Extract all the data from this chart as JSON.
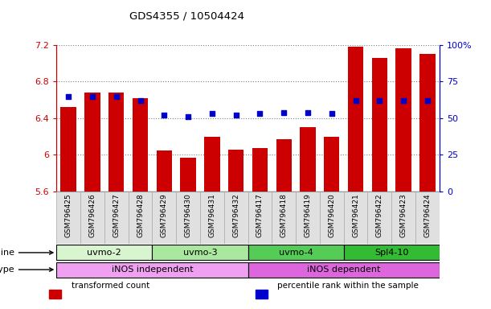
{
  "title": "GDS4355 / 10504424",
  "samples": [
    "GSM796425",
    "GSM796426",
    "GSM796427",
    "GSM796428",
    "GSM796429",
    "GSM796430",
    "GSM796431",
    "GSM796432",
    "GSM796417",
    "GSM796418",
    "GSM796419",
    "GSM796420",
    "GSM796421",
    "GSM796422",
    "GSM796423",
    "GSM796424"
  ],
  "bar_values": [
    6.52,
    6.68,
    6.68,
    6.62,
    6.05,
    5.97,
    6.2,
    6.06,
    6.07,
    6.17,
    6.3,
    6.2,
    7.18,
    7.06,
    7.16,
    7.1
  ],
  "dot_values": [
    65,
    65,
    65,
    62,
    52,
    51,
    53,
    52,
    53,
    54,
    54,
    53,
    62,
    62,
    62,
    62
  ],
  "ymin": 5.6,
  "ymax": 7.2,
  "yticks": [
    5.6,
    6.0,
    6.4,
    6.8,
    7.2
  ],
  "ytick_labels": [
    "5.6",
    "6",
    "6.4",
    "6.8",
    "7.2"
  ],
  "right_yticks": [
    0,
    25,
    50,
    75,
    100
  ],
  "right_ytick_labels": [
    "0",
    "25",
    "50",
    "75",
    "100%"
  ],
  "cell_line_groups": [
    {
      "label": "uvmo-2",
      "start": 0,
      "end": 4,
      "color": "#d8f5d0"
    },
    {
      "label": "uvmo-3",
      "start": 4,
      "end": 8,
      "color": "#aae8a0"
    },
    {
      "label": "uvmo-4",
      "start": 8,
      "end": 12,
      "color": "#55cc55"
    },
    {
      "label": "Spl4-10",
      "start": 12,
      "end": 16,
      "color": "#33bb33"
    }
  ],
  "cell_type_groups": [
    {
      "label": "iNOS independent",
      "start": 0,
      "end": 8,
      "color": "#f0a0f0"
    },
    {
      "label": "iNOS dependent",
      "start": 8,
      "end": 16,
      "color": "#dd66dd"
    }
  ],
  "bar_color": "#cc0000",
  "dot_color": "#0000cc",
  "bar_bottom": 5.6,
  "legend_items": [
    {
      "label": "transformed count",
      "color": "#cc0000"
    },
    {
      "label": "percentile rank within the sample",
      "color": "#0000cc"
    }
  ]
}
